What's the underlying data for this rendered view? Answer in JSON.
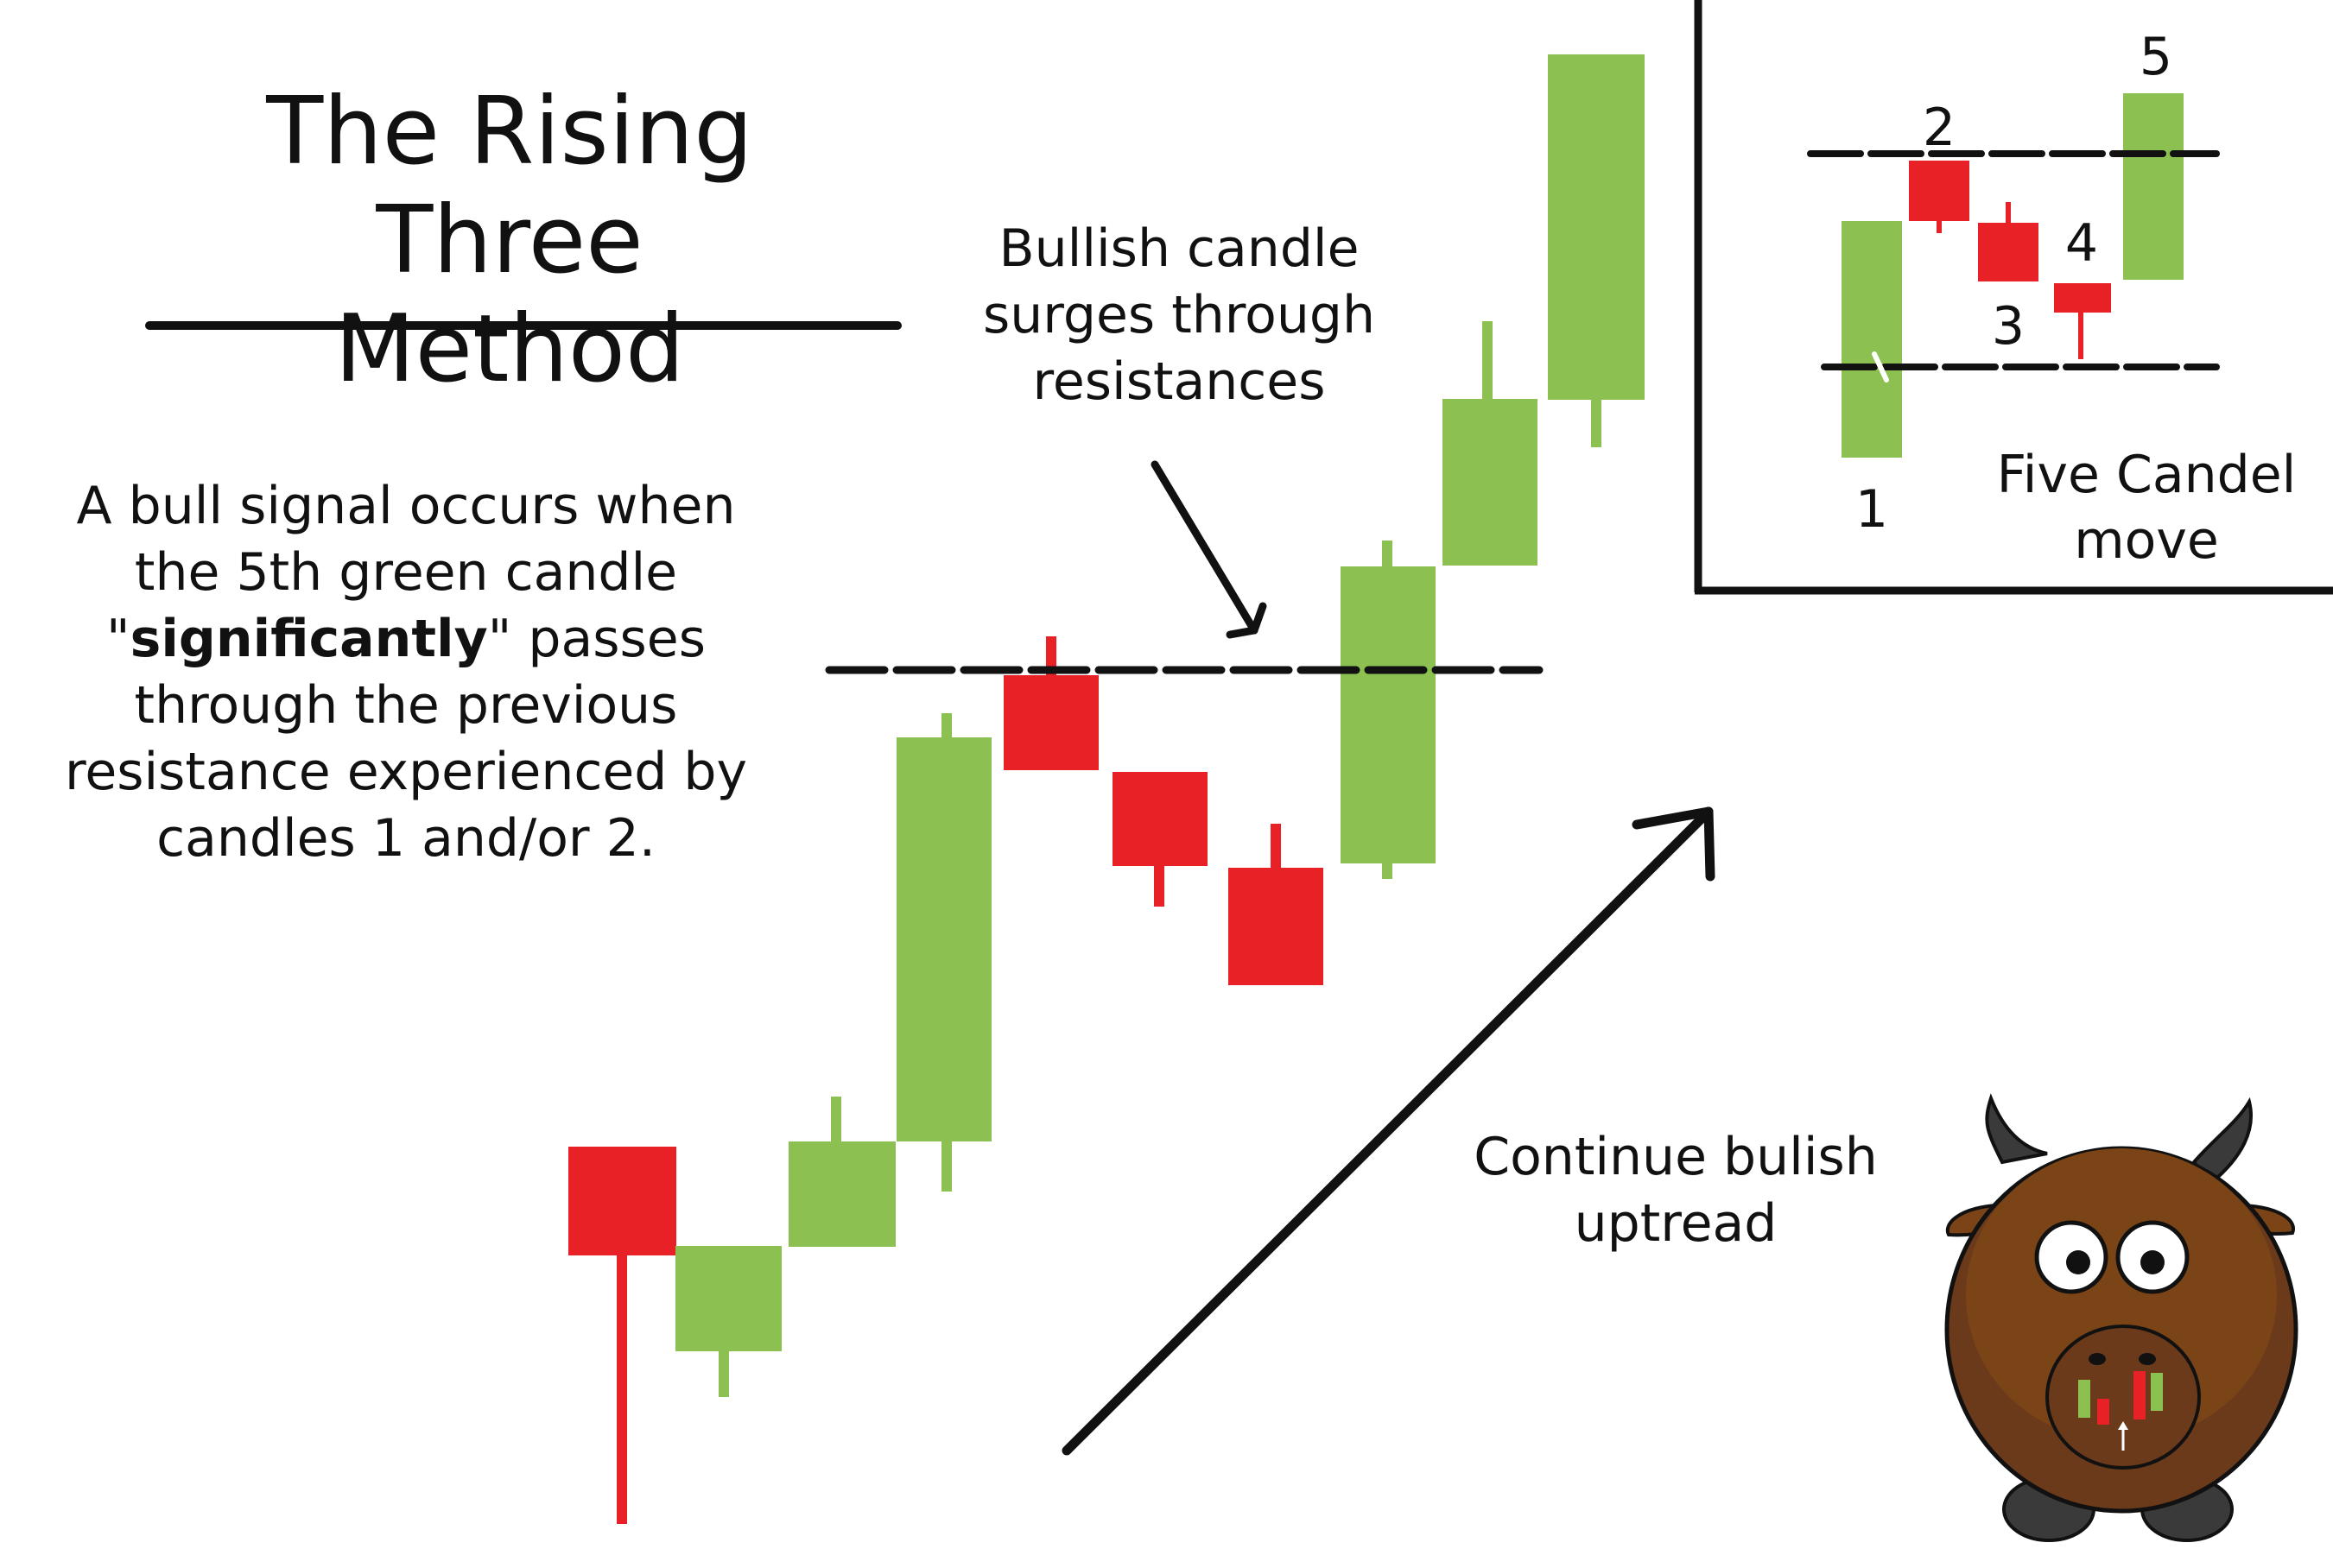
{
  "title": {
    "line1": "The Rising Three",
    "line2": "Method"
  },
  "description": {
    "pre": "A bull signal occurs when the 5th green candle \"",
    "emphasis": "significantly",
    "post": "\" passes through the previous resistance experienced by candles 1 and/or 2."
  },
  "callout_resistance": {
    "line1": "Bullish candle",
    "line2": "surges through",
    "line3": "resistances"
  },
  "callout_trend": {
    "line1": "Continue bulish",
    "line2": "uptread"
  },
  "inset": {
    "labels": {
      "c1": "1",
      "c2": "2",
      "c3": "3",
      "c4": "4",
      "c5": "5"
    },
    "caption": {
      "line1": "Five Candel",
      "line2": "move"
    }
  },
  "colors": {
    "bull": "#8cc152",
    "bear": "#e82127",
    "ink": "#111111",
    "bull_body": "#6b3a1a"
  },
  "icons": {
    "mascot": "bull-mascot-icon",
    "arrow": "trend-arrow-icon"
  }
}
